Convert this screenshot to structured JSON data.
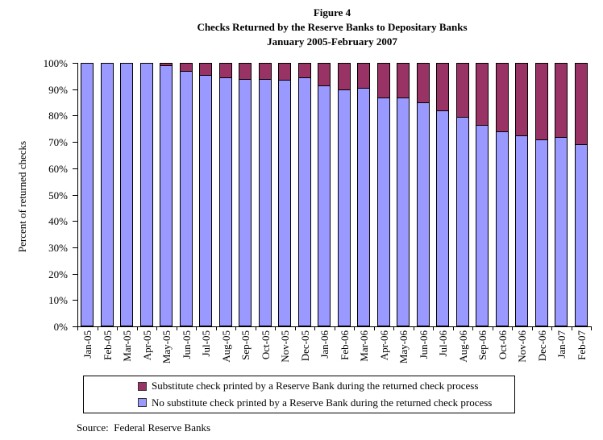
{
  "title": {
    "line1": "Figure 4",
    "line2": "Checks Returned by the Reserve Banks to Depositary Banks",
    "line3": "January 2005-February 2007"
  },
  "source": "Source:  Federal Reserve Banks",
  "chart_data": {
    "type": "bar",
    "stacked": true,
    "title": "Figure 4 — Checks Returned by the Reserve Banks to Depositary Banks, January 2005-February 2007",
    "xlabel": "",
    "ylabel": "Percent of returned checks",
    "ylim": [
      0,
      100
    ],
    "ytick_step": 10,
    "ytick_labels": [
      "100%",
      "90%",
      "80%",
      "70%",
      "60%",
      "50%",
      "40%",
      "30%",
      "20%",
      "10%",
      "0%"
    ],
    "grid": false,
    "legend_position": "bottom-box",
    "categories": [
      "Jan-05",
      "Feb-05",
      "Mar-05",
      "Apr-05",
      "May-05",
      "Jun-05",
      "Jul-05",
      "Aug-05",
      "Sep-05",
      "Oct-05",
      "Nov-05",
      "Dec-05",
      "Jan-06",
      "Feb-06",
      "Mar-06",
      "Apr-06",
      "May-06",
      "Jun-06",
      "Jul-06",
      "Aug-06",
      "Sep-06",
      "Oct-06",
      "Nov-06",
      "Dec-06",
      "Jan-07",
      "Feb-07"
    ],
    "series": [
      {
        "name": "Substitute check printed by a Reserve Bank during the returned check process",
        "color": "#993366",
        "stack_position": "top",
        "values": [
          0,
          0,
          0,
          0,
          1,
          3,
          4.5,
          5.5,
          6,
          6,
          6.5,
          5.5,
          8.5,
          10,
          9.5,
          13,
          13,
          15,
          18,
          20.5,
          23.5,
          26,
          27.5,
          29,
          28,
          31
        ]
      },
      {
        "name": "No substitute check printed by a Reserve Bank during the returned check process",
        "color": "#9999FF",
        "stack_position": "bottom",
        "values": [
          100,
          100,
          100,
          100,
          99,
          97,
          95.5,
          94.5,
          94,
          94,
          93.5,
          94.5,
          91.5,
          90,
          90.5,
          87,
          87,
          85,
          82,
          79.5,
          76.5,
          74,
          72.5,
          71,
          72,
          69
        ]
      }
    ]
  }
}
